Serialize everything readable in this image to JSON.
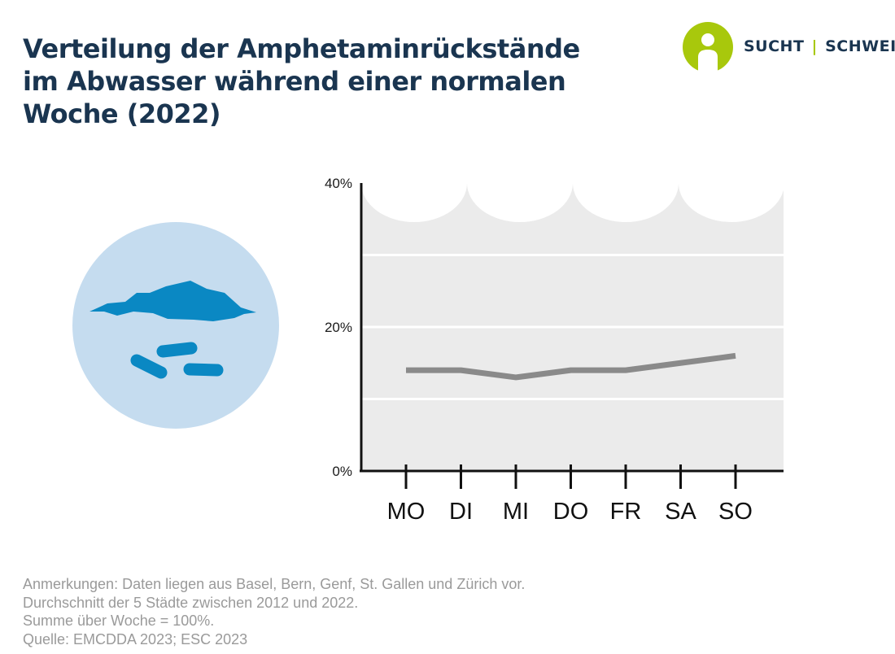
{
  "title_lines": [
    "Verteilung der Amphetaminrückstände",
    "im Abwasser während einer normalen",
    "Woche (2022)"
  ],
  "logo": {
    "left": "SUCHT",
    "separator": "|",
    "right": "SCHWEIZ",
    "brand_color": "#a8c80c"
  },
  "illustration": {
    "icon": "pill-water-icon",
    "circle_color": "#c5dcef",
    "shape_color": "#0a88c3"
  },
  "chart_data": {
    "type": "line",
    "categories": [
      "MO",
      "DI",
      "MI",
      "DO",
      "FR",
      "SA",
      "SO"
    ],
    "series": [
      {
        "values": [
          14,
          14,
          13,
          14,
          14,
          15,
          16
        ],
        "color": "#8a8a8a"
      }
    ],
    "ylim": [
      0,
      40
    ],
    "y_ticks": [
      0,
      20,
      40
    ],
    "y_tick_labels": [
      "0%",
      "20%",
      "40%"
    ],
    "gridlines": [
      10,
      20,
      30
    ],
    "background_color": "#ebebeb",
    "title": "",
    "xlabel": "",
    "ylabel": ""
  },
  "notes": [
    "Anmerkungen: Daten liegen aus Basel, Bern, Genf, St. Gallen und Zürich vor.",
    "Durchschnitt der 5 Städte zwischen 2012 und 2022.",
    "Summe über Woche = 100%.",
    "Quelle: EMCDDA 2023; ESC 2023"
  ]
}
